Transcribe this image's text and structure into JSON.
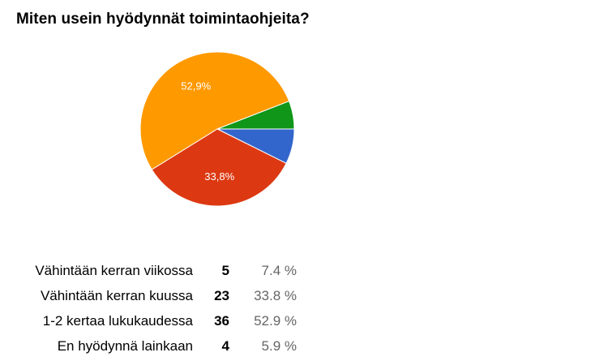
{
  "title": "Miten usein hyödynnät toimintaohjeita?",
  "chart_data": {
    "type": "pie",
    "categories": [
      "Vähintään kerran viikossa",
      "Vähintään kerran kuussa",
      "1-2 kertaa lukukaudessa",
      "En hyödynnä lainkaan"
    ],
    "values": [
      5,
      23,
      36,
      4
    ],
    "percent_labels": [
      "7.4 %",
      "33.8 %",
      "52.9 %",
      "5.9 %"
    ],
    "slice_labels": [
      "",
      "33,8%",
      "52,9%",
      ""
    ],
    "colors": [
      "#3366cc",
      "#dc3912",
      "#ff9900",
      "#109618"
    ]
  },
  "summary": [
    {
      "label": "Vähintään kerran viikossa",
      "count": "5",
      "percent": "7.4 %"
    },
    {
      "label": "Vähintään kerran kuussa",
      "count": "23",
      "percent": "33.8 %"
    },
    {
      "label": "1-2 kertaa lukukaudessa",
      "count": "36",
      "percent": "52.9 %"
    },
    {
      "label": "En hyödynnä lainkaan",
      "count": "4",
      "percent": "5.9 %"
    }
  ]
}
